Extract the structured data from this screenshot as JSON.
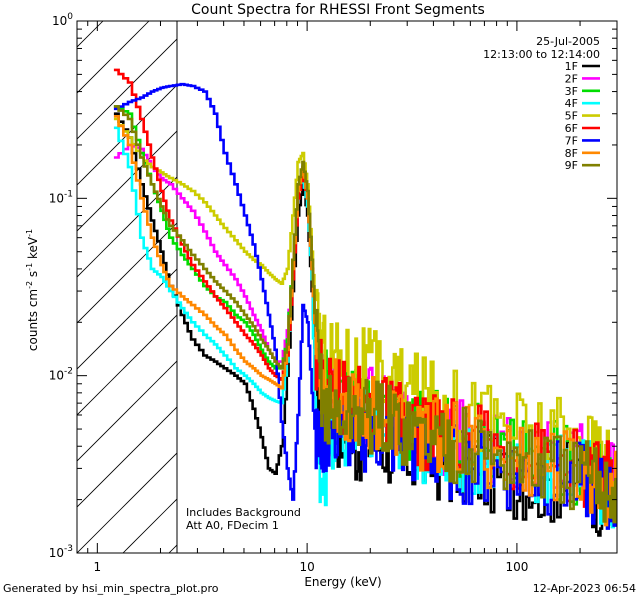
{
  "footer": {
    "generated_by": "Generated by hsi_min_spectra_plot.pro",
    "timestamp": "12-Apr-2023 06:54"
  },
  "chart_data": {
    "type": "line",
    "title": "Count Spectra for RHESSI Front Segments",
    "xlabel": "Energy (keV)",
    "ylabel": "counts cm^-2 s^-1 keV^-1",
    "xscale": "log",
    "yscale": "log",
    "xlim": [
      0.8,
      300
    ],
    "ylim": [
      0.001,
      1
    ],
    "x_ticks": [
      {
        "value": 10,
        "label": "10"
      },
      {
        "value": 100,
        "label": "100"
      }
    ],
    "y_ticks": [
      {
        "value": 1,
        "label": "10",
        "exp": "0"
      },
      {
        "value": 0.1,
        "label": "10",
        "exp": "-1"
      },
      {
        "value": 0.01,
        "label": "10",
        "exp": "-2"
      },
      {
        "value": 0.001,
        "label": "10",
        "exp": "-3"
      }
    ],
    "date_text": "25-Jul-2005",
    "time_text": "12:13:00 to 12:14:00",
    "annotations": [
      "Includes Background",
      "Att A0, FDecim 1"
    ],
    "hatch_region_keV": [
      0.8,
      3.0
    ],
    "series": [
      {
        "name": "1F",
        "color": "#000000",
        "x": [
          1.2,
          1.4,
          1.6,
          1.8,
          2.0,
          2.2,
          2.5,
          2.8,
          3.2,
          3.6,
          4.0,
          4.5,
          5.0,
          5.5,
          6.0,
          6.5,
          7.0,
          7.5,
          8.0,
          8.5,
          9.0,
          9.5,
          10.0,
          10.5,
          11.0,
          12.0,
          14.0,
          17.0,
          20.0,
          25.0,
          30.0,
          40.0,
          50.0,
          70.0,
          100.0,
          140.0,
          200.0,
          250.0,
          300.0
        ],
        "y": [
          0.3,
          0.22,
          0.12,
          0.075,
          0.05,
          0.032,
          0.022,
          0.016,
          0.013,
          0.012,
          0.011,
          0.01,
          0.009,
          0.0065,
          0.0045,
          0.003,
          0.0028,
          0.004,
          0.01,
          0.03,
          0.08,
          0.12,
          0.08,
          0.03,
          0.01,
          0.006,
          0.005,
          0.004,
          0.0045,
          0.0038,
          0.0035,
          0.0033,
          0.003,
          0.0028,
          0.0026,
          0.0024,
          0.0028,
          0.002,
          0.002
        ]
      },
      {
        "name": "2F",
        "color": "#ff00ff",
        "x": [
          1.2,
          1.4,
          1.6,
          1.8,
          2.0,
          2.2,
          2.5,
          2.8,
          3.2,
          3.6,
          4.0,
          4.5,
          5.0,
          5.5,
          6.0,
          6.5,
          7.0,
          7.5,
          8.0,
          8.5,
          9.0,
          9.5,
          10.0,
          10.5,
          11.0,
          12.0,
          14.0,
          17.0,
          20.0,
          25.0,
          30.0,
          40.0,
          50.0,
          70.0,
          100.0,
          140.0,
          200.0,
          250.0,
          300.0
        ],
        "y": [
          0.17,
          0.2,
          0.19,
          0.15,
          0.13,
          0.12,
          0.1,
          0.085,
          0.065,
          0.05,
          0.042,
          0.035,
          0.028,
          0.022,
          0.018,
          0.014,
          0.012,
          0.012,
          0.018,
          0.04,
          0.1,
          0.14,
          0.1,
          0.04,
          0.015,
          0.008,
          0.0075,
          0.0065,
          0.0068,
          0.0058,
          0.0052,
          0.0048,
          0.0044,
          0.004,
          0.0036,
          0.0033,
          0.0032,
          0.0028,
          0.0025
        ]
      },
      {
        "name": "3F",
        "color": "#00dd00",
        "x": [
          1.2,
          1.4,
          1.6,
          1.8,
          2.0,
          2.2,
          2.5,
          2.8,
          3.2,
          3.6,
          4.0,
          4.5,
          5.0,
          5.5,
          6.0,
          6.5,
          7.0,
          7.5,
          8.0,
          8.5,
          9.0,
          9.5,
          10.0,
          10.5,
          11.0,
          12.0,
          14.0,
          17.0,
          20.0,
          25.0,
          30.0,
          40.0,
          50.0,
          70.0,
          100.0,
          140.0,
          200.0,
          250.0,
          300.0
        ],
        "y": [
          0.33,
          0.3,
          0.18,
          0.12,
          0.085,
          0.06,
          0.048,
          0.04,
          0.032,
          0.028,
          0.026,
          0.022,
          0.02,
          0.017,
          0.014,
          0.012,
          0.011,
          0.011,
          0.016,
          0.045,
          0.12,
          0.15,
          0.1,
          0.04,
          0.014,
          0.0085,
          0.0075,
          0.0068,
          0.0068,
          0.006,
          0.0054,
          0.005,
          0.0045,
          0.0041,
          0.0037,
          0.0034,
          0.003,
          0.0026,
          0.0022
        ]
      },
      {
        "name": "4F",
        "color": "#00ffff",
        "x": [
          1.2,
          1.4,
          1.6,
          1.8,
          2.0,
          2.2,
          2.5,
          2.8,
          3.2,
          3.6,
          4.0,
          4.5,
          5.0,
          5.5,
          6.0,
          6.5,
          7.0,
          7.5,
          8.0,
          8.5,
          9.0,
          9.5,
          10.0,
          10.5,
          11.0,
          12.0,
          14.0,
          17.0,
          20.0,
          25.0,
          30.0,
          40.0,
          50.0,
          70.0,
          100.0,
          140.0,
          200.0,
          250.0,
          300.0
        ],
        "y": [
          0.25,
          0.15,
          0.06,
          0.04,
          0.036,
          0.03,
          0.024,
          0.02,
          0.017,
          0.015,
          0.013,
          0.011,
          0.01,
          0.009,
          0.008,
          0.0075,
          0.0072,
          0.007,
          0.012,
          0.04,
          0.11,
          0.13,
          0.09,
          0.035,
          0.0035,
          0.003,
          0.0045,
          0.005,
          0.0052,
          0.0048,
          0.0042,
          0.004,
          0.0036,
          0.0034,
          0.0032,
          0.003,
          0.0028,
          0.0024,
          0.002
        ]
      },
      {
        "name": "5F",
        "color": "#cccc00",
        "x": [
          1.2,
          1.4,
          1.6,
          1.8,
          2.0,
          2.2,
          2.5,
          2.8,
          3.2,
          3.6,
          4.0,
          4.5,
          5.0,
          5.5,
          6.0,
          6.5,
          7.0,
          7.5,
          8.0,
          8.5,
          9.0,
          9.5,
          10.0,
          10.5,
          11.0,
          12.0,
          14.0,
          17.0,
          20.0,
          25.0,
          30.0,
          40.0,
          50.0,
          70.0,
          100.0,
          140.0,
          200.0,
          250.0,
          300.0
        ],
        "y": [
          0.28,
          0.22,
          0.17,
          0.15,
          0.14,
          0.13,
          0.12,
          0.11,
          0.095,
          0.08,
          0.068,
          0.058,
          0.05,
          0.045,
          0.042,
          0.038,
          0.035,
          0.033,
          0.04,
          0.08,
          0.16,
          0.18,
          0.12,
          0.05,
          0.02,
          0.014,
          0.013,
          0.012,
          0.011,
          0.0095,
          0.0085,
          0.0075,
          0.0068,
          0.006,
          0.0052,
          0.0046,
          0.0042,
          0.0036,
          0.003
        ]
      },
      {
        "name": "6F",
        "color": "#ff0000",
        "x": [
          1.2,
          1.4,
          1.6,
          1.8,
          2.0,
          2.2,
          2.5,
          2.8,
          3.2,
          3.6,
          4.0,
          4.5,
          5.0,
          5.5,
          6.0,
          6.5,
          7.0,
          7.5,
          8.0,
          8.5,
          9.0,
          9.5,
          10.0,
          10.5,
          11.0,
          12.0,
          14.0,
          17.0,
          20.0,
          25.0,
          30.0,
          40.0,
          50.0,
          70.0,
          100.0,
          140.0,
          200.0,
          250.0,
          300.0
        ],
        "y": [
          0.53,
          0.45,
          0.28,
          0.17,
          0.11,
          0.075,
          0.055,
          0.042,
          0.034,
          0.028,
          0.024,
          0.02,
          0.017,
          0.015,
          0.013,
          0.011,
          0.01,
          0.0095,
          0.013,
          0.035,
          0.1,
          0.14,
          0.1,
          0.04,
          0.014,
          0.0085,
          0.0078,
          0.007,
          0.0066,
          0.0058,
          0.0052,
          0.0048,
          0.0044,
          0.004,
          0.0036,
          0.0033,
          0.003,
          0.0027,
          0.0024
        ]
      },
      {
        "name": "7F",
        "color": "#0000ff",
        "x": [
          1.2,
          1.4,
          1.6,
          1.8,
          2.0,
          2.2,
          2.5,
          2.8,
          3.2,
          3.6,
          4.0,
          4.5,
          5.0,
          5.5,
          6.0,
          6.5,
          7.0,
          7.5,
          8.0,
          8.5,
          9.0,
          9.5,
          10.0,
          10.5,
          11.0,
          12.0,
          14.0,
          17.0,
          20.0,
          25.0,
          30.0,
          40.0,
          50.0,
          70.0,
          100.0,
          140.0,
          200.0,
          250.0,
          300.0
        ],
        "y": [
          0.32,
          0.35,
          0.37,
          0.4,
          0.42,
          0.43,
          0.44,
          0.43,
          0.4,
          0.3,
          0.18,
          0.12,
          0.08,
          0.055,
          0.035,
          0.022,
          0.014,
          0.0055,
          0.003,
          0.002,
          0.006,
          0.025,
          0.02,
          0.008,
          0.004,
          0.0045,
          0.005,
          0.0046,
          0.0048,
          0.0043,
          0.004,
          0.0036,
          0.0032,
          0.003,
          0.0028,
          0.0027,
          0.0025,
          0.0022,
          0.0019
        ]
      },
      {
        "name": "8F",
        "color": "#ff8800",
        "x": [
          1.2,
          1.4,
          1.6,
          1.8,
          2.0,
          2.2,
          2.5,
          2.8,
          3.2,
          3.6,
          4.0,
          4.5,
          5.0,
          5.5,
          6.0,
          6.5,
          7.0,
          7.5,
          8.0,
          8.5,
          9.0,
          9.5,
          10.0,
          10.5,
          11.0,
          12.0,
          14.0,
          17.0,
          20.0,
          25.0,
          30.0,
          40.0,
          50.0,
          70.0,
          100.0,
          140.0,
          200.0,
          250.0,
          300.0
        ],
        "y": [
          0.29,
          0.2,
          0.1,
          0.06,
          0.042,
          0.032,
          0.028,
          0.025,
          0.022,
          0.019,
          0.017,
          0.014,
          0.012,
          0.011,
          0.01,
          0.0095,
          0.009,
          0.0085,
          0.014,
          0.04,
          0.11,
          0.15,
          0.1,
          0.04,
          0.014,
          0.008,
          0.0074,
          0.0068,
          0.0064,
          0.0056,
          0.005,
          0.0046,
          0.0042,
          0.0038,
          0.0034,
          0.0031,
          0.0028,
          0.0025,
          0.0022
        ]
      },
      {
        "name": "9F",
        "color": "#808000",
        "x": [
          1.2,
          1.4,
          1.6,
          1.8,
          2.0,
          2.2,
          2.5,
          2.8,
          3.2,
          3.6,
          4.0,
          4.5,
          5.0,
          5.5,
          6.0,
          6.5,
          7.0,
          7.5,
          8.0,
          8.5,
          9.0,
          9.5,
          10.0,
          10.5,
          11.0,
          12.0,
          14.0,
          17.0,
          20.0,
          25.0,
          30.0,
          40.0,
          50.0,
          70.0,
          100.0,
          140.0,
          200.0,
          250.0,
          300.0
        ],
        "y": [
          0.33,
          0.28,
          0.17,
          0.12,
          0.09,
          0.07,
          0.058,
          0.048,
          0.04,
          0.034,
          0.03,
          0.026,
          0.022,
          0.019,
          0.016,
          0.014,
          0.012,
          0.011,
          0.015,
          0.045,
          0.12,
          0.16,
          0.11,
          0.045,
          0.016,
          0.0065,
          0.006,
          0.0062,
          0.006,
          0.0054,
          0.0049,
          0.0045,
          0.0041,
          0.0037,
          0.0033,
          0.003,
          0.0027,
          0.0025,
          0.0022
        ]
      }
    ]
  }
}
